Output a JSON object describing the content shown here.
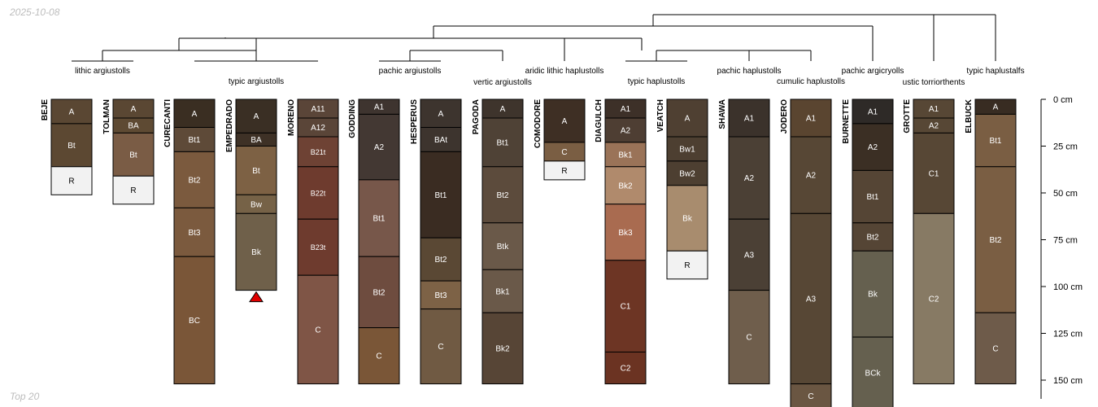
{
  "date_stamp": "2025-10-08",
  "footer_note": "Top 20",
  "depth_axis": {
    "unit": "cm",
    "max_depth": 160,
    "ticks": [
      {
        "value": 0,
        "label": "0 cm"
      },
      {
        "value": 25,
        "label": "25 cm"
      },
      {
        "value": 50,
        "label": "50 cm"
      },
      {
        "value": 75,
        "label": "75 cm"
      },
      {
        "value": 100,
        "label": "100 cm"
      },
      {
        "value": 125,
        "label": "125 cm"
      },
      {
        "value": 150,
        "label": "150 cm"
      }
    ]
  },
  "taxonomic_groups": [
    {
      "label": "lithic argiustolls",
      "members": [
        "BEJE",
        "TOLMAN"
      ]
    },
    {
      "label": "typic argiustolls",
      "members": [
        "CURECANTI",
        "EMPEDRADO",
        "MORENO"
      ]
    },
    {
      "label": "pachic argiustolls",
      "members": [
        "GODDING",
        "HESPERUS"
      ]
    },
    {
      "label": "vertic argiustolls",
      "members": [
        "PAGODA"
      ]
    },
    {
      "label": "aridic lithic haplustolls",
      "members": [
        "COMODORE"
      ]
    },
    {
      "label": "typic haplustolls",
      "members": [
        "DIAGULCH",
        "VEATCH"
      ]
    },
    {
      "label": "pachic haplustolls",
      "members": [
        "SHAWA"
      ]
    },
    {
      "label": "cumulic haplustolls",
      "members": [
        "JODERO"
      ]
    },
    {
      "label": "pachic argicryolls",
      "members": [
        "BURNETTE"
      ]
    },
    {
      "label": "ustic torriorthents",
      "members": [
        "GROTTE"
      ]
    },
    {
      "label": "typic haplustalfs",
      "members": [
        "ELBUCK"
      ]
    }
  ],
  "profiles": [
    {
      "name": "BEJE",
      "horizons": [
        {
          "name": "A",
          "top": 0,
          "bottom": 13,
          "color": "#5a4733"
        },
        {
          "name": "Bt",
          "top": 13,
          "bottom": 36,
          "color": "#5c4832"
        },
        {
          "name": "R",
          "top": 36,
          "bottom": 51,
          "color": "#f2f2f2"
        }
      ]
    },
    {
      "name": "TOLMAN",
      "horizons": [
        {
          "name": "A",
          "top": 0,
          "bottom": 10,
          "color": "#5a4733"
        },
        {
          "name": "BA",
          "top": 10,
          "bottom": 18,
          "color": "#5e4a33"
        },
        {
          "name": "Bt",
          "top": 18,
          "bottom": 41,
          "color": "#7a5c45"
        },
        {
          "name": "R",
          "top": 41,
          "bottom": 56,
          "color": "#f2f2f2"
        }
      ]
    },
    {
      "name": "CURECANTI",
      "horizons": [
        {
          "name": "A",
          "top": 0,
          "bottom": 15,
          "color": "#3a2e22"
        },
        {
          "name": "Bt1",
          "top": 15,
          "bottom": 28,
          "color": "#5e4a38"
        },
        {
          "name": "Bt2",
          "top": 28,
          "bottom": 58,
          "color": "#7b5a3e"
        },
        {
          "name": "Bt3",
          "top": 58,
          "bottom": 84,
          "color": "#7b5a3e"
        },
        {
          "name": "BC",
          "top": 84,
          "bottom": 152,
          "color": "#7a5638"
        }
      ]
    },
    {
      "name": "EMPEDRADO",
      "horizons": [
        {
          "name": "A",
          "top": 0,
          "bottom": 18,
          "color": "#3a2f24"
        },
        {
          "name": "BA",
          "top": 18,
          "bottom": 25,
          "color": "#3e3126"
        },
        {
          "name": "Bt",
          "top": 25,
          "bottom": 51,
          "color": "#7d6144"
        },
        {
          "name": "Bw",
          "top": 51,
          "bottom": 61,
          "color": "#766247"
        },
        {
          "name": "Bk",
          "top": 61,
          "bottom": 102,
          "color": "#6f604a"
        }
      ],
      "marker": "red-triangle"
    },
    {
      "name": "MORENO",
      "horizons": [
        {
          "name": "A11",
          "top": 0,
          "bottom": 10,
          "color": "#5a4538"
        },
        {
          "name": "A12",
          "top": 10,
          "bottom": 20,
          "color": "#5a4538"
        },
        {
          "name": "B21t",
          "top": 20,
          "bottom": 36,
          "color": "#6e4234"
        },
        {
          "name": "B22t",
          "top": 36,
          "bottom": 64,
          "color": "#6e3b2e"
        },
        {
          "name": "B23t",
          "top": 64,
          "bottom": 94,
          "color": "#6e3b2e"
        },
        {
          "name": "C",
          "top": 94,
          "bottom": 152,
          "color": "#7f5546"
        }
      ]
    },
    {
      "name": "GODDING",
      "horizons": [
        {
          "name": "A1",
          "top": 0,
          "bottom": 8,
          "color": "#3e342f"
        },
        {
          "name": "A2",
          "top": 8,
          "bottom": 43,
          "color": "#433833"
        },
        {
          "name": "Bt1",
          "top": 43,
          "bottom": 84,
          "color": "#77574a"
        },
        {
          "name": "Bt2",
          "top": 84,
          "bottom": 122,
          "color": "#6e4c3f"
        },
        {
          "name": "C",
          "top": 122,
          "bottom": 152,
          "color": "#7a5637"
        }
      ]
    },
    {
      "name": "HESPERUS",
      "horizons": [
        {
          "name": "A",
          "top": 0,
          "bottom": 15,
          "color": "#3d342e"
        },
        {
          "name": "BAt",
          "top": 15,
          "bottom": 28,
          "color": "#3d342e"
        },
        {
          "name": "Bt1",
          "top": 28,
          "bottom": 74,
          "color": "#3a2c22"
        },
        {
          "name": "Bt2",
          "top": 74,
          "bottom": 97,
          "color": "#5a4834"
        },
        {
          "name": "Bt3",
          "top": 97,
          "bottom": 112,
          "color": "#7d6246"
        },
        {
          "name": "C",
          "top": 112,
          "bottom": 152,
          "color": "#705a43"
        }
      ]
    },
    {
      "name": "PAGODA",
      "horizons": [
        {
          "name": "A",
          "top": 0,
          "bottom": 10,
          "color": "#3e342c"
        },
        {
          "name": "Bt1",
          "top": 10,
          "bottom": 36,
          "color": "#4f4236"
        },
        {
          "name": "Bt2",
          "top": 36,
          "bottom": 66,
          "color": "#5c4b3c"
        },
        {
          "name": "Btk",
          "top": 66,
          "bottom": 91,
          "color": "#6a5949"
        },
        {
          "name": "Bk1",
          "top": 91,
          "bottom": 114,
          "color": "#6a5949"
        },
        {
          "name": "Bk2",
          "top": 114,
          "bottom": 152,
          "color": "#574536"
        }
      ]
    },
    {
      "name": "COMODORE",
      "horizons": [
        {
          "name": "A",
          "top": 0,
          "bottom": 23,
          "color": "#3e2f24"
        },
        {
          "name": "C",
          "top": 23,
          "bottom": 33,
          "color": "#7a5e43"
        },
        {
          "name": "R",
          "top": 33,
          "bottom": 43,
          "color": "#f2f2f2"
        }
      ]
    },
    {
      "name": "DIAGULCH",
      "horizons": [
        {
          "name": "A1",
          "top": 0,
          "bottom": 10,
          "color": "#3d3028"
        },
        {
          "name": "A2",
          "top": 10,
          "bottom": 23,
          "color": "#4e3e33"
        },
        {
          "name": "Bk1",
          "top": 23,
          "bottom": 36,
          "color": "#9a7358"
        },
        {
          "name": "Bk2",
          "top": 36,
          "bottom": 56,
          "color": "#b08a6c"
        },
        {
          "name": "Bk3",
          "top": 56,
          "bottom": 86,
          "color": "#a96b50"
        },
        {
          "name": "C1",
          "top": 86,
          "bottom": 135,
          "color": "#6d3524"
        },
        {
          "name": "C2",
          "top": 135,
          "bottom": 152,
          "color": "#6b3322"
        }
      ]
    },
    {
      "name": "VEATCH",
      "horizons": [
        {
          "name": "A",
          "top": 0,
          "bottom": 20,
          "color": "#4f4032"
        },
        {
          "name": "Bw1",
          "top": 20,
          "bottom": 33,
          "color": "#4d3f31"
        },
        {
          "name": "Bw2",
          "top": 33,
          "bottom": 46,
          "color": "#4d3f31"
        },
        {
          "name": "Bk",
          "top": 46,
          "bottom": 81,
          "color": "#a88c6e"
        },
        {
          "name": "R",
          "top": 81,
          "bottom": 96,
          "color": "#f2f2f2"
        }
      ]
    },
    {
      "name": "SHAWA",
      "horizons": [
        {
          "name": "A1",
          "top": 0,
          "bottom": 20,
          "color": "#3b322b"
        },
        {
          "name": "A2",
          "top": 20,
          "bottom": 64,
          "color": "#4b4035"
        },
        {
          "name": "A3",
          "top": 64,
          "bottom": 102,
          "color": "#4b4035"
        },
        {
          "name": "C",
          "top": 102,
          "bottom": 152,
          "color": "#6f5e4c"
        }
      ]
    },
    {
      "name": "JODERO",
      "horizons": [
        {
          "name": "A1",
          "top": 0,
          "bottom": 20,
          "color": "#5a4530"
        },
        {
          "name": "A2",
          "top": 20,
          "bottom": 61,
          "color": "#574735"
        },
        {
          "name": "A3",
          "top": 61,
          "bottom": 152,
          "color": "#574735"
        },
        {
          "name": "C",
          "top": 152,
          "bottom": 165,
          "color": "#6a5642"
        }
      ]
    },
    {
      "name": "BURNETTE",
      "horizons": [
        {
          "name": "A1",
          "top": 0,
          "bottom": 13,
          "color": "#2e2a27"
        },
        {
          "name": "A2",
          "top": 13,
          "bottom": 38,
          "color": "#3b2f24"
        },
        {
          "name": "Bt1",
          "top": 38,
          "bottom": 66,
          "color": "#554535"
        },
        {
          "name": "Bt2",
          "top": 66,
          "bottom": 81,
          "color": "#554535"
        },
        {
          "name": "Bk",
          "top": 81,
          "bottom": 127,
          "color": "#65604f"
        },
        {
          "name": "BCk",
          "top": 127,
          "bottom": 165,
          "color": "#65604f"
        }
      ]
    },
    {
      "name": "GROTTE",
      "horizons": [
        {
          "name": "A1",
          "top": 0,
          "bottom": 10,
          "color": "#574735"
        },
        {
          "name": "A2",
          "top": 10,
          "bottom": 18,
          "color": "#574735"
        },
        {
          "name": "C1",
          "top": 18,
          "bottom": 61,
          "color": "#574735"
        },
        {
          "name": "C2",
          "top": 61,
          "bottom": 152,
          "color": "#877a64"
        }
      ]
    },
    {
      "name": "ELBUCK",
      "horizons": [
        {
          "name": "A",
          "top": 0,
          "bottom": 8,
          "color": "#382c22"
        },
        {
          "name": "Bt1",
          "top": 8,
          "bottom": 36,
          "color": "#7a5e43"
        },
        {
          "name": "Bt2",
          "top": 36,
          "bottom": 114,
          "color": "#7a5e43"
        },
        {
          "name": "C",
          "top": 114,
          "bottom": 152,
          "color": "#6e5b4a"
        }
      ]
    }
  ]
}
